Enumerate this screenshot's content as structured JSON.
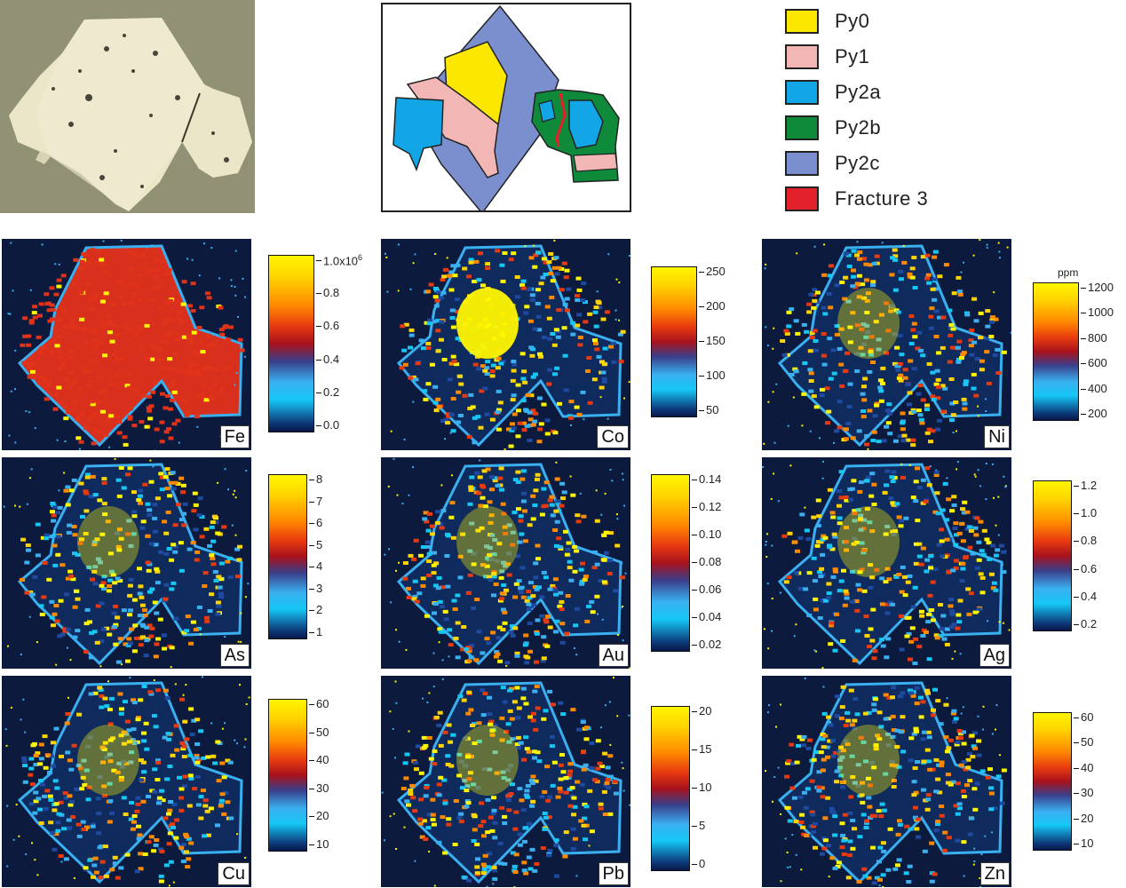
{
  "legend": [
    {
      "label": "Py0",
      "color": "#fbe700"
    },
    {
      "label": "Py1",
      "color": "#f2b6b4"
    },
    {
      "label": "Py2a",
      "color": "#12a6e6"
    },
    {
      "label": "Py2b",
      "color": "#0f8a3a"
    },
    {
      "label": "Py2c",
      "color": "#7b8fcf"
    },
    {
      "label": "Fracture 3",
      "color": "#e3212b"
    }
  ],
  "maps": [
    {
      "element": "Fe",
      "ticks": [
        "1.0x10",
        "0.8",
        "0.6",
        "0.4",
        "0.2",
        "0.0"
      ],
      "sup": "6"
    },
    {
      "element": "Co",
      "ticks": [
        "250",
        "200",
        "150",
        "100",
        "50"
      ]
    },
    {
      "element": "Ni",
      "ticks": [
        "1200",
        "1000",
        "800",
        "600",
        "400",
        "200"
      ],
      "unit": "ppm"
    },
    {
      "element": "As",
      "ticks": [
        "8",
        "7",
        "6",
        "5",
        "4",
        "3",
        "2",
        "1"
      ]
    },
    {
      "element": "Au",
      "ticks": [
        "0.14",
        "0.12",
        "0.10",
        "0.08",
        "0.06",
        "0.04",
        "0.02"
      ]
    },
    {
      "element": "Ag",
      "ticks": [
        "1.2",
        "1.0",
        "0.8",
        "0.6",
        "0.4",
        "0.2"
      ]
    },
    {
      "element": "Cu",
      "ticks": [
        "60",
        "50",
        "40",
        "30",
        "20",
        "10"
      ]
    },
    {
      "element": "Pb",
      "ticks": [
        "20",
        "15",
        "10",
        "5",
        "0"
      ]
    },
    {
      "element": "Zn",
      "ticks": [
        "60",
        "50",
        "40",
        "30",
        "20",
        "10"
      ]
    }
  ]
}
